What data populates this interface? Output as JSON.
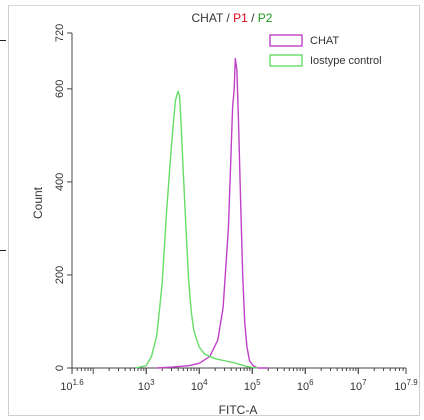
{
  "chart_data": {
    "type": "line",
    "title_parts": [
      {
        "text": "CHAT",
        "color": "#333333"
      },
      {
        "text": " / ",
        "color": "#333333"
      },
      {
        "text": "P1",
        "color": "#e0001a"
      },
      {
        "text": " / ",
        "color": "#333333"
      },
      {
        "text": "P2",
        "color": "#1a9c1a"
      }
    ],
    "xlabel": "FITC-A",
    "ylabel": "Count",
    "x_scale": "log10",
    "xlim": [
      1.6,
      7.9
    ],
    "ylim": [
      0,
      720
    ],
    "x_ticks": [
      {
        "base": "10",
        "exp": "1.6",
        "value": 1.6
      },
      {
        "base": "10",
        "exp": "3",
        "value": 3
      },
      {
        "base": "10",
        "exp": "4",
        "value": 4
      },
      {
        "base": "10",
        "exp": "5",
        "value": 5
      },
      {
        "base": "10",
        "exp": "6",
        "value": 6
      },
      {
        "base": "10",
        "exp": "7",
        "value": 7
      },
      {
        "base": "10",
        "exp": "7.9",
        "value": 7.9
      }
    ],
    "y_ticks": [
      "0",
      "200",
      "400",
      "600",
      "720"
    ],
    "grid": false,
    "legend_position": "top-right",
    "series": [
      {
        "name": "CHAT",
        "color": "#c040c8",
        "x_log10": [
          3.2,
          3.5,
          3.8,
          4.0,
          4.2,
          4.35,
          4.45,
          4.55,
          4.6,
          4.63,
          4.66,
          4.68,
          4.71,
          4.74,
          4.78,
          4.82,
          4.86,
          4.9,
          4.95,
          5.02,
          5.1,
          5.3
        ],
        "y": [
          0,
          2,
          5,
          10,
          25,
          60,
          130,
          300,
          460,
          560,
          600,
          665,
          640,
          530,
          360,
          200,
          95,
          45,
          15,
          5,
          0,
          0
        ]
      },
      {
        "name": "Iostype control",
        "color": "#66dd66",
        "x_log10": [
          2.8,
          3.0,
          3.1,
          3.2,
          3.3,
          3.38,
          3.45,
          3.5,
          3.55,
          3.6,
          3.63,
          3.66,
          3.7,
          3.75,
          3.8,
          3.85,
          3.9,
          4.0,
          4.1,
          4.3,
          4.5,
          4.7,
          4.9,
          5.1
        ],
        "y": [
          0,
          5,
          25,
          70,
          180,
          330,
          440,
          510,
          575,
          595,
          585,
          520,
          420,
          300,
          190,
          120,
          80,
          45,
          30,
          20,
          15,
          10,
          3,
          0
        ]
      }
    ]
  }
}
